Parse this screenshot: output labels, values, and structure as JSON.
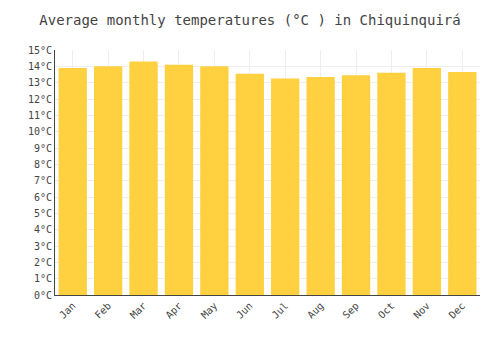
{
  "chart_data": {
    "type": "bar",
    "title": "Average monthly temperatures (°C ) in Chiquinquirá",
    "categories": [
      "Jan",
      "Feb",
      "Mar",
      "Apr",
      "May",
      "Jun",
      "Jul",
      "Aug",
      "Sep",
      "Oct",
      "Nov",
      "Dec"
    ],
    "values": [
      13.9,
      14.0,
      14.3,
      14.1,
      14.0,
      13.55,
      13.25,
      13.35,
      13.45,
      13.6,
      13.9,
      13.65
    ],
    "color": "#FFD040",
    "ylim": [
      0,
      15
    ],
    "yticks": [
      {
        "value": 0,
        "label": "0°C"
      },
      {
        "value": 1,
        "label": "1°C"
      },
      {
        "value": 2,
        "label": "2°C"
      },
      {
        "value": 3,
        "label": "3°C"
      },
      {
        "value": 4,
        "label": "4°C"
      },
      {
        "value": 5,
        "label": "5°C"
      },
      {
        "value": 6,
        "label": "6°C"
      },
      {
        "value": 7,
        "label": "7°C"
      },
      {
        "value": 8,
        "label": "8°C"
      },
      {
        "value": 9,
        "label": "9°C"
      },
      {
        "value": 10,
        "label": "10°C"
      },
      {
        "value": 11,
        "label": "11°C"
      },
      {
        "value": 12,
        "label": "12°C"
      },
      {
        "value": 13,
        "label": "13°C"
      },
      {
        "value": 14,
        "label": "14°C"
      },
      {
        "value": 15,
        "label": "15°C"
      }
    ],
    "grid": true
  }
}
